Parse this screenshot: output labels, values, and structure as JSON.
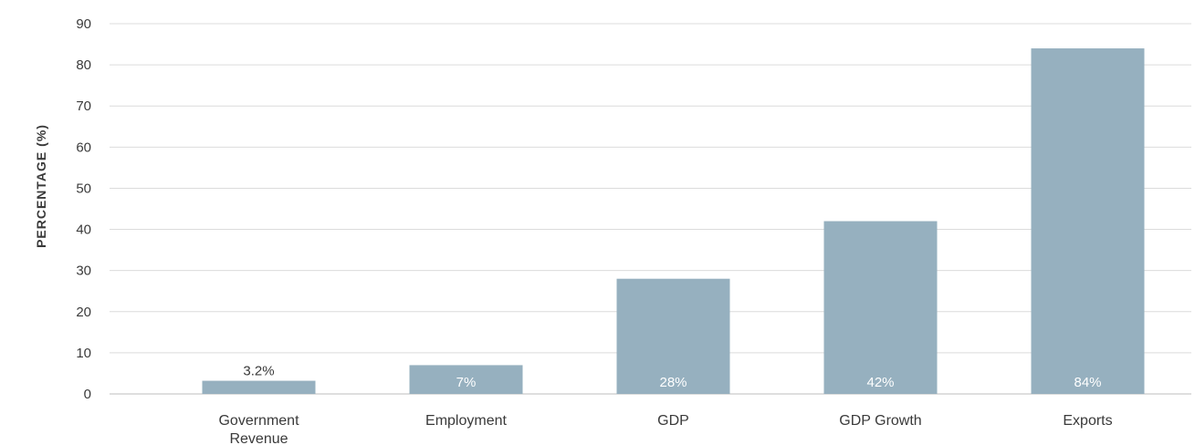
{
  "chart_data": {
    "type": "bar",
    "categories": [
      "Government Revenue",
      "Employment",
      "GDP",
      "GDP Growth",
      "Exports"
    ],
    "category_lines": [
      [
        "Government",
        "Revenue"
      ],
      [
        "Employment"
      ],
      [
        "GDP"
      ],
      [
        "GDP Growth"
      ],
      [
        "Exports"
      ]
    ],
    "values": [
      3.2,
      7,
      28,
      42,
      84
    ],
    "data_labels": [
      "3.2%",
      "7%",
      "28%",
      "42%",
      "84%"
    ],
    "ylabel": "PERCENTAGE (%)",
    "xlabel": "",
    "ylim": [
      0,
      90
    ],
    "yticks": [
      0,
      10,
      20,
      30,
      40,
      50,
      60,
      70,
      80,
      90
    ],
    "grid": true,
    "bar_color": "#96b0bf",
    "label_inside_color": "#ffffff",
    "label_outside_color": "#3a3a3a"
  }
}
